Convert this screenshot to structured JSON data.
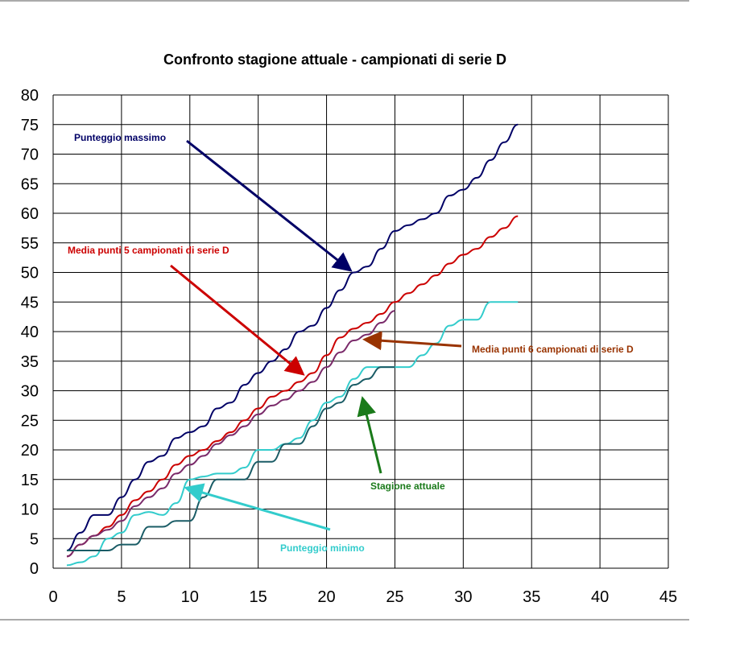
{
  "chart_data": {
    "type": "line",
    "title": "Confronto stagione attuale - campionati di serie D",
    "xlabel": "",
    "ylabel": "",
    "xlim": [
      0,
      45
    ],
    "ylim": [
      0,
      80
    ],
    "x_ticks": [
      0,
      5,
      10,
      15,
      20,
      25,
      30,
      35,
      40,
      45
    ],
    "y_ticks": [
      0,
      5,
      10,
      15,
      20,
      25,
      30,
      35,
      40,
      45,
      50,
      55,
      60,
      65,
      70,
      75,
      80
    ],
    "grid": true,
    "series": [
      {
        "name": "Punteggio massimo",
        "color": "#000066",
        "x": [
          1,
          2,
          3,
          4,
          5,
          6,
          7,
          8,
          9,
          10,
          11,
          12,
          13,
          14,
          15,
          16,
          17,
          18,
          19,
          20,
          21,
          22,
          23,
          24,
          25,
          26,
          27,
          28,
          29,
          30,
          31,
          32,
          33,
          34
        ],
        "values": [
          3,
          6,
          9,
          9,
          12,
          15,
          18,
          19,
          22,
          23,
          24,
          27,
          28,
          31,
          33,
          35,
          37,
          40,
          41,
          44,
          47,
          50,
          51,
          54,
          57,
          58,
          59,
          60,
          63,
          64,
          66,
          69,
          72,
          75
        ]
      },
      {
        "name": "Media punti 5 campionati di serie  D",
        "color": "#cc0000",
        "x": [
          1,
          2,
          3,
          4,
          5,
          6,
          7,
          8,
          9,
          10,
          11,
          12,
          13,
          14,
          15,
          16,
          17,
          18,
          19,
          20,
          21,
          22,
          23,
          24,
          25,
          26,
          27,
          28,
          29,
          30,
          31,
          32,
          33,
          34
        ],
        "values": [
          2,
          4,
          5.5,
          7,
          9,
          11.5,
          13,
          15,
          17.5,
          19,
          20,
          21.5,
          23,
          25,
          27,
          29,
          30,
          31.5,
          33,
          36,
          39,
          40.5,
          41.5,
          43,
          45,
          46.5,
          48,
          49.5,
          51.5,
          53,
          54,
          56,
          57.5,
          59.5
        ]
      },
      {
        "name": "Media punti 6 campionati di serie  D",
        "color": "#7a2a6a",
        "x": [
          1,
          2,
          3,
          4,
          5,
          6,
          7,
          8,
          9,
          10,
          11,
          12,
          13,
          14,
          15,
          16,
          17,
          18,
          19,
          20,
          21,
          22,
          23,
          24,
          25
        ],
        "values": [
          2,
          4,
          5.5,
          6.5,
          8,
          10.5,
          12,
          13.5,
          16,
          17.5,
          19,
          21,
          22.5,
          24,
          26,
          27.5,
          28.5,
          30,
          31.5,
          34,
          36.5,
          38.5,
          39.5,
          41.5,
          43.5
        ]
      },
      {
        "name": "Punteggio minimo",
        "color": "#33cccc",
        "x": [
          1,
          2,
          3,
          4,
          5,
          6,
          7,
          8,
          9,
          10,
          11,
          12,
          13,
          14,
          15,
          16,
          17,
          18,
          19,
          20,
          21,
          22,
          23,
          24,
          25,
          26,
          27,
          28,
          29,
          30,
          31,
          32,
          33,
          34
        ],
        "values": [
          0.5,
          1,
          2,
          5,
          6,
          9,
          9.5,
          9,
          11,
          15,
          15.5,
          16,
          16,
          17,
          20,
          20,
          21,
          22,
          25,
          28,
          29,
          32,
          34,
          34,
          34,
          34,
          36,
          38,
          41,
          42,
          42,
          45,
          45,
          45
        ]
      },
      {
        "name": "Stagione attuale",
        "color": "#1a5c66",
        "x": [
          1,
          2,
          3,
          4,
          5,
          6,
          7,
          8,
          9,
          10,
          11,
          12,
          13,
          14,
          15,
          16,
          17,
          18,
          19,
          20,
          21,
          22,
          23,
          24,
          25
        ],
        "values": [
          3,
          3,
          3,
          3,
          4,
          4,
          7,
          7,
          8,
          8,
          12,
          15,
          15,
          15,
          18,
          18,
          21,
          21,
          24,
          27,
          28,
          31,
          32,
          34,
          34
        ]
      }
    ],
    "annotations": [
      {
        "text": "Punteggio massimo",
        "color": "#000066"
      },
      {
        "text": "Media punti 5 campionati di serie  D",
        "color": "#cc0000"
      },
      {
        "text": "Media punti 6 campionati di serie  D",
        "color": "#993300"
      },
      {
        "text": "Stagione attuale",
        "color": "#1a7a1a"
      },
      {
        "text": "Punteggio minimo",
        "color": "#33cccc"
      }
    ]
  }
}
